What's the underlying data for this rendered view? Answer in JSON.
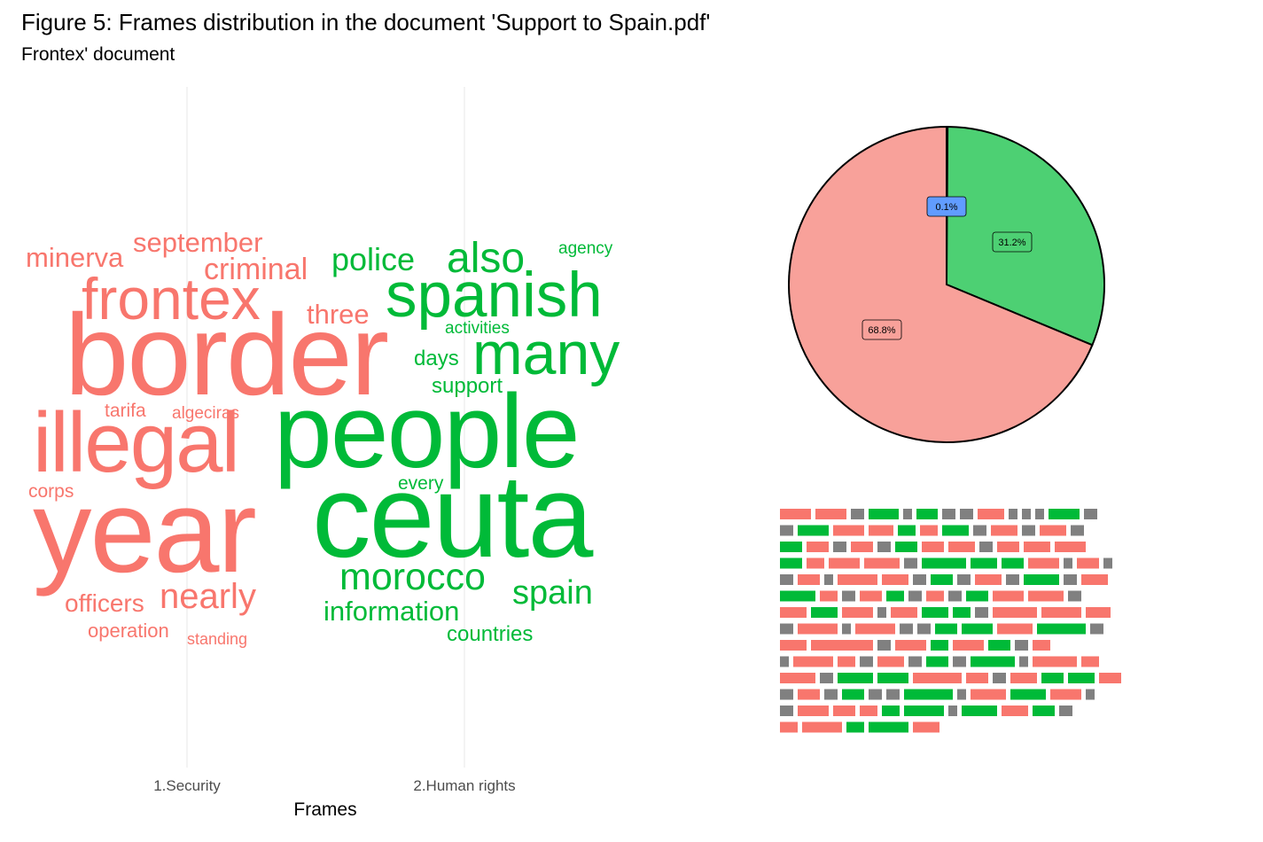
{
  "figure": {
    "title": "Figure 5: Frames distribution in the document 'Support to Spain.pdf'",
    "subtitle": "Frontex' document"
  },
  "colors": {
    "security_text": "#f8766d",
    "human_rights_text": "#00ba38",
    "security_pie": "#f8a19a",
    "human_rights_pie": "#4dd073",
    "other_pie": "#619cff",
    "other_waffle": "#808080",
    "gridline": "#ebebeb"
  },
  "chart_data": [
    {
      "type": "wordcloud",
      "xlabel": "Frames",
      "categories": [
        "1.Security",
        "2.Human rights"
      ],
      "words": [
        {
          "text": "border",
          "frame": "1.Security"
        },
        {
          "text": "year",
          "frame": "1.Security"
        },
        {
          "text": "illegal",
          "frame": "1.Security"
        },
        {
          "text": "frontex",
          "frame": "1.Security"
        },
        {
          "text": "nearly",
          "frame": "1.Security"
        },
        {
          "text": "criminal",
          "frame": "1.Security"
        },
        {
          "text": "september",
          "frame": "1.Security"
        },
        {
          "text": "minerva",
          "frame": "1.Security"
        },
        {
          "text": "three",
          "frame": "1.Security"
        },
        {
          "text": "officers",
          "frame": "1.Security"
        },
        {
          "text": "operation",
          "frame": "1.Security"
        },
        {
          "text": "tarifa",
          "frame": "1.Security"
        },
        {
          "text": "algeciras",
          "frame": "1.Security"
        },
        {
          "text": "corps",
          "frame": "1.Security"
        },
        {
          "text": "standing",
          "frame": "1.Security"
        },
        {
          "text": "people",
          "frame": "2.Human rights"
        },
        {
          "text": "ceuta",
          "frame": "2.Human rights"
        },
        {
          "text": "spanish",
          "frame": "2.Human rights"
        },
        {
          "text": "many",
          "frame": "2.Human rights"
        },
        {
          "text": "also",
          "frame": "2.Human rights"
        },
        {
          "text": "morocco",
          "frame": "2.Human rights"
        },
        {
          "text": "spain",
          "frame": "2.Human rights"
        },
        {
          "text": "police",
          "frame": "2.Human rights"
        },
        {
          "text": "information",
          "frame": "2.Human rights"
        },
        {
          "text": "support",
          "frame": "2.Human rights"
        },
        {
          "text": "days",
          "frame": "2.Human rights"
        },
        {
          "text": "countries",
          "frame": "2.Human rights"
        },
        {
          "text": "activities",
          "frame": "2.Human rights"
        },
        {
          "text": "every",
          "frame": "2.Human rights"
        },
        {
          "text": "agency",
          "frame": "2.Human rights"
        }
      ]
    },
    {
      "type": "pie",
      "slices": [
        {
          "label": "68.8%",
          "value": 68.8
        },
        {
          "label": "31.2%",
          "value": 31.2
        },
        {
          "label": "0.1%",
          "value": 0.1
        }
      ]
    },
    {
      "type": "waffle",
      "cells": [
        "R",
        "R",
        "G",
        "G",
        "R",
        "G",
        "G",
        "R",
        "R",
        "G",
        "R",
        "G",
        "R",
        "R",
        "G",
        "R",
        "R",
        "G",
        "R",
        "R",
        "R",
        "R",
        "R",
        "G",
        "R",
        "R",
        "R",
        "G",
        "G",
        "G",
        "R",
        "R",
        "R",
        "R",
        "R",
        "G",
        "R",
        "G",
        "R",
        "G",
        "R",
        "R",
        "G",
        "R",
        "G",
        "R",
        "R",
        "R",
        "G",
        "R",
        "R",
        "G",
        "G",
        "R",
        "R",
        "R",
        "R",
        "R",
        "G",
        "G",
        "R",
        "G",
        "R",
        "R",
        "R",
        "G",
        "R",
        "G",
        "R",
        "R",
        "R",
        "R",
        "G",
        "G",
        "R",
        "R",
        "R",
        "G",
        "G",
        "R",
        "R",
        "R",
        "G",
        "G",
        "R",
        "R",
        "G",
        "G",
        "R",
        "G",
        "R",
        "R",
        "R",
        "R",
        "G",
        "G",
        "G",
        "R",
        "G",
        "R",
        "R",
        "G",
        "G",
        "R",
        "R",
        "R",
        "G",
        "R",
        "R",
        "G",
        "R",
        "R",
        "G",
        "R",
        "R",
        "R",
        "R",
        "R",
        "G",
        "G",
        "G",
        "R",
        "G",
        "R",
        "R",
        "G",
        "R",
        "G",
        "R",
        "G",
        "R",
        "G",
        "R",
        "G",
        "R",
        "R",
        "R",
        "G",
        "R",
        "R",
        "R",
        "G",
        "R",
        "R",
        "G",
        "G",
        "R",
        "G",
        "R",
        "R",
        "R",
        "G",
        "R"
      ]
    }
  ]
}
